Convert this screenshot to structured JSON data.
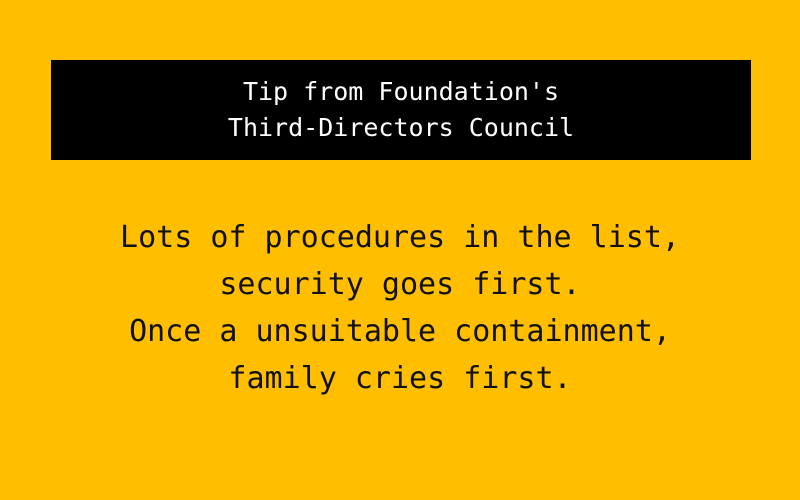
{
  "colors": {
    "background": "#FFBE00",
    "banner_background": "#000000",
    "banner_text": "#FFFFFF",
    "body_text": "#111111"
  },
  "header": {
    "line1": "Tip from Foundation's",
    "line2": "Third-Directors Council"
  },
  "tip": {
    "line1": "Lots of procedures in the list,",
    "line2": "security goes first.",
    "line3": "Once a unsuitable containment,",
    "line4": "family cries first."
  }
}
